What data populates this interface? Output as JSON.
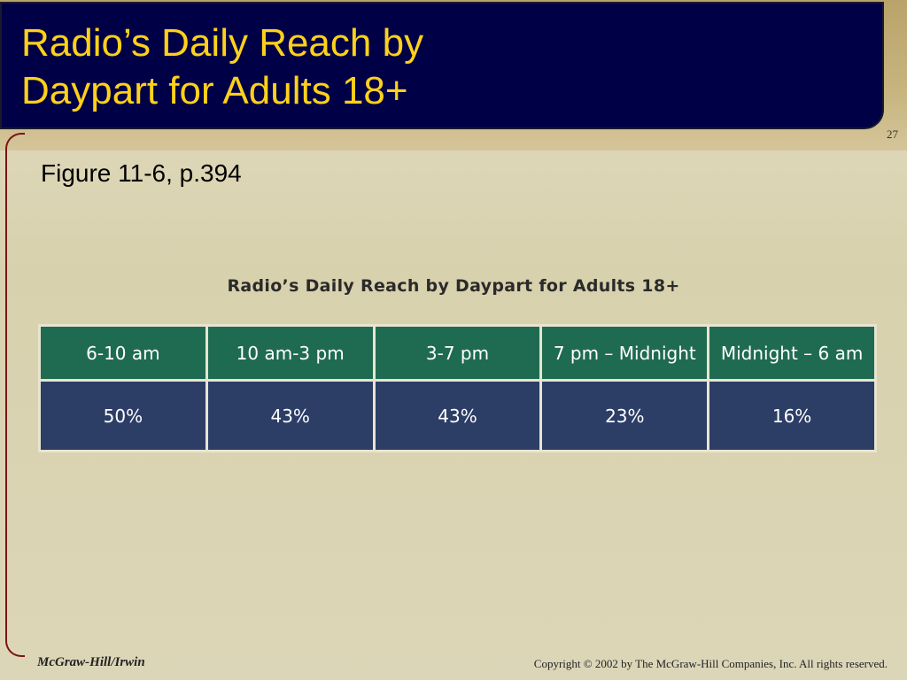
{
  "slide": {
    "title": "Radio’s Daily Reach by\nDaypart for Adults 18+",
    "page_number": "27",
    "subtitle": "Figure 11-6, p.394"
  },
  "table": {
    "title": "Radio’s Daily Reach by Daypart for Adults 18+",
    "headers": [
      "6-10 am",
      "10 am-3 pm",
      "3-7 pm",
      "7 pm – Midnight",
      "Midnight – 6 am"
    ],
    "values": [
      "50%",
      "43%",
      "43%",
      "23%",
      "16%"
    ]
  },
  "footer": {
    "publisher": "McGraw-Hill/Irwin",
    "copyright": "Copyright © 2002 by The McGraw-Hill Companies, Inc.  All rights reserved."
  }
}
